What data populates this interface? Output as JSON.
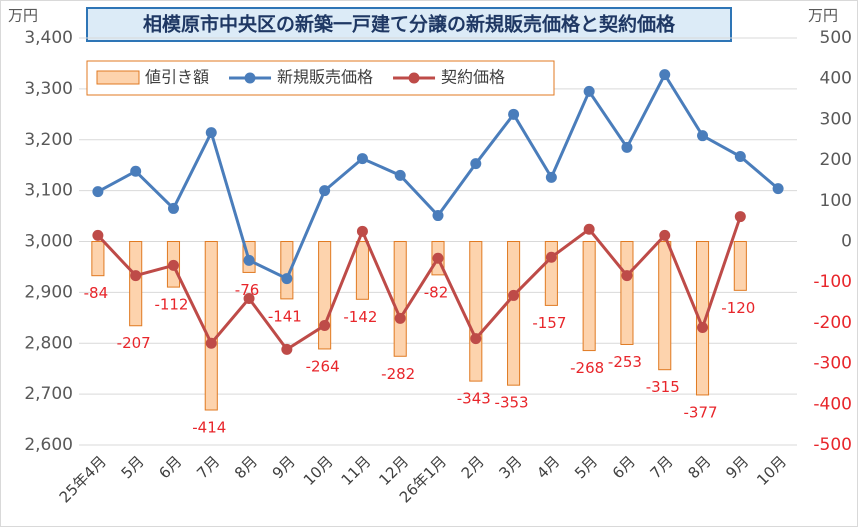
{
  "chart_data": {
    "type": "combo",
    "title": "相模原市中央区の新築一戸建て分譲の新規販売価格と契約価格",
    "y_unit": "万円",
    "y2_unit": "万円",
    "categories": [
      "25年4月",
      "5月",
      "6月",
      "7月",
      "8月",
      "9月",
      "10月",
      "11月",
      "12月",
      "26年1月",
      "2月",
      "3月",
      "4月",
      "5月",
      "6月",
      "7月",
      "8月",
      "9月",
      "10月"
    ],
    "ylim": [
      2600,
      3400
    ],
    "yticks": [
      {
        "value": 2600,
        "label": "2,600"
      },
      {
        "value": 2700,
        "label": "2,700"
      },
      {
        "value": 2800,
        "label": "2,800"
      },
      {
        "value": 2900,
        "label": "2,900"
      },
      {
        "value": 3000,
        "label": "3,000"
      },
      {
        "value": 3100,
        "label": "3,100"
      },
      {
        "value": 3200,
        "label": "3,200"
      },
      {
        "value": 3300,
        "label": "3,300"
      },
      {
        "value": 3400,
        "label": "3,400"
      }
    ],
    "y2lim": [
      -500,
      500
    ],
    "y2ticks": [
      -500,
      -400,
      -300,
      -200,
      -100,
      0,
      100,
      200,
      300,
      400,
      500
    ],
    "grid": true,
    "series": [
      {
        "name": "値引き額",
        "kind": "bar",
        "axis": "y2",
        "color": "#fdd3ad",
        "edge_color": "#e07a22",
        "label_color": "#e8262b",
        "values": [
          -84,
          -207,
          -112,
          -414,
          -76,
          -141,
          -264,
          -142,
          -282,
          -82,
          -343,
          -353,
          -157,
          -268,
          -253,
          -315,
          -377,
          -120,
          null
        ]
      },
      {
        "name": "新規販売価格",
        "kind": "line",
        "color": "#4a7dbb",
        "values": [
          3098,
          3138,
          3065,
          3214,
          2963,
          2927,
          3100,
          3163,
          3130,
          3051,
          3153,
          3250,
          3126,
          3295,
          3185,
          3328,
          3208,
          3167,
          3104
        ]
      },
      {
        "name": "契約価格",
        "kind": "line",
        "color": "#be4b48",
        "values": [
          3012,
          2933,
          2953,
          2800,
          2888,
          2788,
          2835,
          3020,
          2849,
          2967,
          2809,
          2894,
          2969,
          3024,
          2933,
          3012,
          2831,
          3049,
          null
        ]
      }
    ]
  }
}
